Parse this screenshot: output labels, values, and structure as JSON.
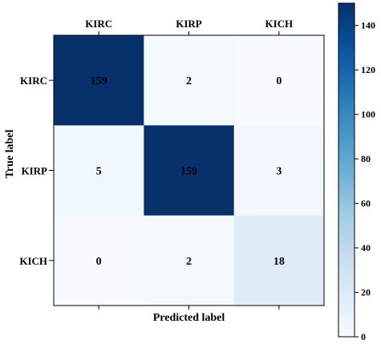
{
  "chart_data": {
    "type": "heatmap",
    "title": "",
    "xlabel": "Predicted label",
    "ylabel": "True label",
    "x_categories": [
      "KIRC",
      "KIRP",
      "KICH"
    ],
    "y_categories": [
      "KIRC",
      "KIRP",
      "KICH"
    ],
    "values": [
      [
        159,
        2,
        0
      ],
      [
        5,
        159,
        3
      ],
      [
        0,
        2,
        18
      ]
    ],
    "colorbar": {
      "min": 0,
      "max": 150,
      "ticks": [
        "0",
        "20",
        "40",
        "60",
        "80",
        "100",
        "120",
        "140"
      ],
      "colormap": "Blues"
    },
    "colors": {
      "low": "#f7fbff",
      "high": "#08306b"
    }
  }
}
